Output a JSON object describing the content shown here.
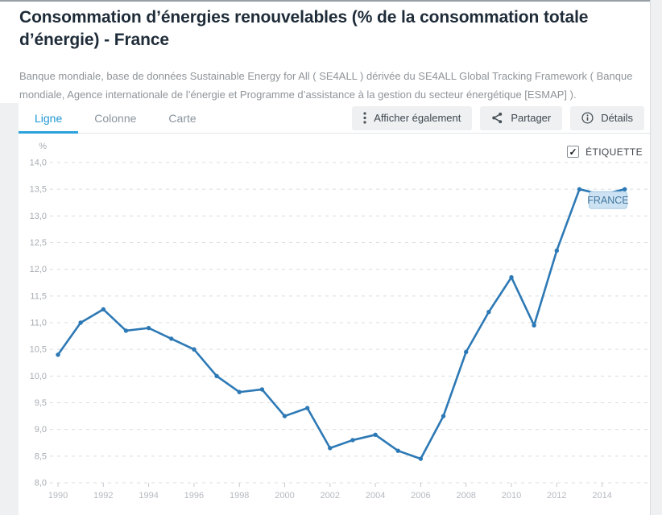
{
  "header": {
    "title": "Consommation d’énergies renouvelables (% de la consommation totale d’énergie) - France",
    "source": "Banque mondiale, base de données Sustainable Energy for All ( SE4ALL ) dérivée du SE4ALL Global Tracking Framework ( Banque mondiale, Agence internationale de l’énergie et Programme d’assistance à la gestion du secteur énergétique [ESMAP] )."
  },
  "tabs": [
    {
      "label": "Ligne",
      "active": true
    },
    {
      "label": "Colonne",
      "active": false
    },
    {
      "label": "Carte",
      "active": false
    }
  ],
  "actions": [
    {
      "label": "Afficher également",
      "icon": "kebab-menu-icon"
    },
    {
      "label": "Partager",
      "icon": "share-icon"
    },
    {
      "label": "Détails",
      "icon": "info-icon"
    }
  ],
  "chart": {
    "unit_label": "%",
    "etiquette_label": "ÉTIQUETTE",
    "etiquette_checked": true,
    "check_glyph": "✓",
    "series_badge": "FRANCE"
  },
  "colors": {
    "accent_tab_blue": "#2097d4",
    "line_blue": "#2d79b5",
    "badge_fill": "#cde3f3",
    "badge_border": "#a3c8e3",
    "page_gray": "#eef0f2",
    "grid_gray": "#d9dcdf"
  },
  "chart_data": {
    "type": "line",
    "title": "Consommation d’énergies renouvelables (% de la consommation totale d’énergie) - France",
    "xlabel": "",
    "ylabel": "%",
    "ylim": [
      8.0,
      14.0
    ],
    "ytick_step": 0.5,
    "grid": "horizontal-dashed",
    "legend_position": "badge-at-line-end",
    "x": [
      1990,
      1991,
      1992,
      1993,
      1994,
      1995,
      1996,
      1997,
      1998,
      1999,
      2000,
      2001,
      2002,
      2003,
      2004,
      2005,
      2006,
      2007,
      2008,
      2009,
      2010,
      2011,
      2012,
      2013,
      2014,
      2015
    ],
    "xticks": [
      1990,
      1992,
      1994,
      1996,
      1998,
      2000,
      2002,
      2004,
      2006,
      2008,
      2010,
      2012,
      2014
    ],
    "series": [
      {
        "name": "FRANCE",
        "color": "#2d79b5",
        "values": [
          10.4,
          11.0,
          11.25,
          10.85,
          10.9,
          10.7,
          10.5,
          10.0,
          9.7,
          9.75,
          9.25,
          9.4,
          8.65,
          8.8,
          8.9,
          8.6,
          8.45,
          9.25,
          10.45,
          11.2,
          11.85,
          10.95,
          12.35,
          13.5,
          13.4,
          13.5
        ]
      }
    ]
  }
}
